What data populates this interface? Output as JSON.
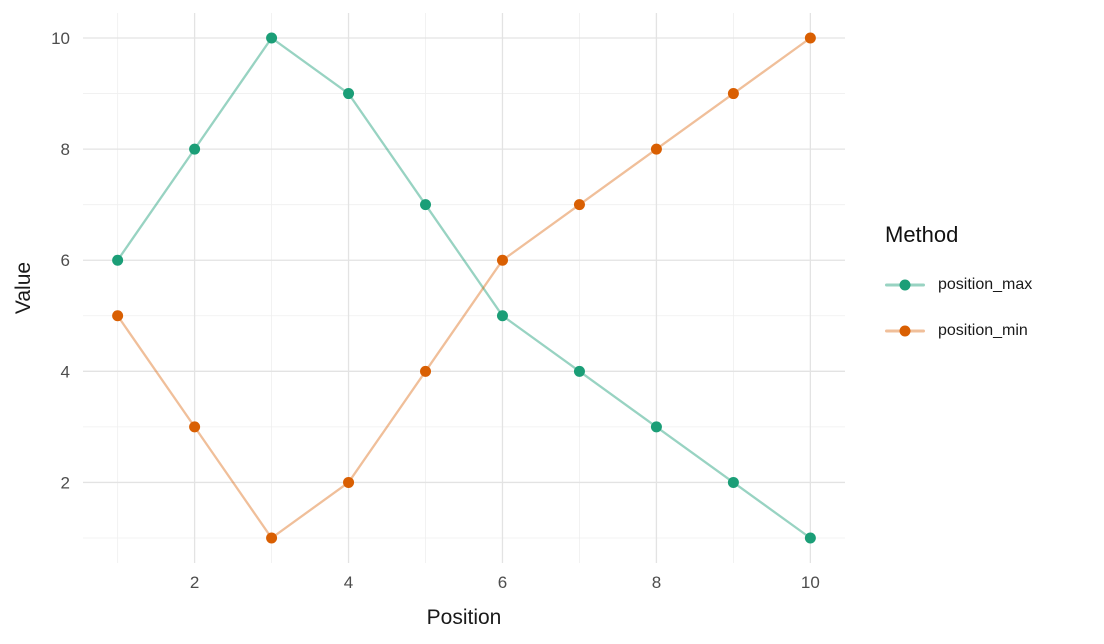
{
  "chart_data": {
    "type": "line",
    "x": [
      1,
      2,
      3,
      4,
      5,
      6,
      7,
      8,
      9,
      10
    ],
    "series": [
      {
        "name": "position_max",
        "values": [
          6,
          8,
          10,
          9,
          7,
          5,
          4,
          3,
          2,
          1
        ],
        "point_color": "#1B9E77",
        "line_color": "rgba(27,158,119,0.45)"
      },
      {
        "name": "position_min",
        "values": [
          5,
          3,
          1,
          2,
          4,
          6,
          7,
          8,
          9,
          10
        ],
        "point_color": "#D95F02",
        "line_color": "rgba(217,95,2,0.4)"
      }
    ],
    "title": "",
    "xlabel": "Position",
    "ylabel": "Value",
    "legend_title": "Method",
    "legend_position": "right",
    "x_ticks": [
      2,
      4,
      6,
      8,
      10
    ],
    "y_ticks": [
      2,
      4,
      6,
      8,
      10
    ],
    "x_minor_gridlines": [
      1,
      3,
      5,
      7,
      9
    ],
    "y_minor_gridlines": [
      1,
      3,
      5,
      7,
      9
    ],
    "xlim": [
      0.55,
      10.45
    ],
    "ylim": [
      0.55,
      10.45
    ],
    "grid": "on",
    "panel_background": "#ffffff",
    "major_grid_color": "#e3e3e3",
    "minor_grid_color": "#efefef",
    "tick_label_color": "#4d4d4d"
  }
}
